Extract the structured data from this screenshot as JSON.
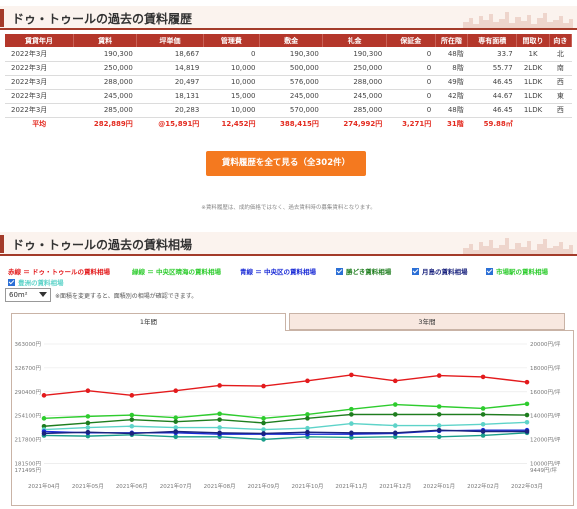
{
  "section1": {
    "title": "ドゥ・トゥールの過去の賃料履歴"
  },
  "history_table": {
    "headers": [
      "賃貸年月",
      "賃料",
      "坪単価",
      "管理費",
      "敷金",
      "礼金",
      "保証金",
      "所在階",
      "専有面積",
      "間取り",
      "向き"
    ],
    "rows": [
      [
        "2022年3月",
        "190,300",
        "18,667",
        "0",
        "190,300",
        "190,300",
        "0",
        "48階",
        "33.7",
        "1K",
        "北"
      ],
      [
        "2022年3月",
        "250,000",
        "14,819",
        "10,000",
        "500,000",
        "250,000",
        "0",
        "8階",
        "55.77",
        "2LDK",
        "南"
      ],
      [
        "2022年3月",
        "288,000",
        "20,497",
        "10,000",
        "576,000",
        "288,000",
        "0",
        "49階",
        "46.45",
        "1LDK",
        "西"
      ],
      [
        "2022年3月",
        "245,000",
        "18,131",
        "15,000",
        "245,000",
        "245,000",
        "0",
        "42階",
        "44.67",
        "1LDK",
        "東"
      ],
      [
        "2022年3月",
        "285,000",
        "20,283",
        "10,000",
        "570,000",
        "285,000",
        "0",
        "48階",
        "46.45",
        "1LDK",
        "西"
      ]
    ],
    "average": [
      "平均",
      "282,889円",
      "@15,891円",
      "12,452円",
      "388,415円",
      "274,992円",
      "3,271円",
      "31階",
      "59.88㎡",
      "",
      ""
    ]
  },
  "more_button": {
    "label": "賃料履歴を全て見る（全302件）"
  },
  "note": "※賃料履歴は、成約価格ではなく、過去賃料時の募集賃料となります。",
  "section2": {
    "title": "ドゥ・トゥールの過去の賃料相場"
  },
  "legend": {
    "red": "赤線 ＝ ドゥ・トゥールの賃料相場",
    "green": "緑線 ＝ 中央区晴海の賃料相場",
    "blue": "青線 ＝ 中央区の賃料相場",
    "checks": [
      "勝どき賃料相場",
      "月島の賃料相場",
      "市場駅の賃料相場",
      "豊洲の賃料相場"
    ]
  },
  "area_select": {
    "value": "60m²"
  },
  "area_note": "※面積を変更すると、面積別の相場が確認できます。",
  "tabs": [
    "1年間",
    "3年間"
  ],
  "colors": {
    "red": "#e31a1c",
    "green": "#2ecc2e",
    "blue": "#1a2bd6",
    "dark_green": "#1e7d1e",
    "teal": "#1b9e8a",
    "light_teal": "#5ed3c9",
    "navy": "#1a237e"
  },
  "chart_data": {
    "type": "line",
    "x": [
      "2021年04月",
      "2021年05月",
      "2021年06月",
      "2021年07月",
      "2021年08月",
      "2021年09月",
      "2021年10月",
      "2021年11月",
      "2021年12月",
      "2022年01月",
      "2022年02月",
      "2022年03月"
    ],
    "left_ticks": [
      "363000円",
      "326700円",
      "290400円",
      "254100円",
      "217800円",
      "181500円",
      "171495円"
    ],
    "right_ticks": [
      "20000円/坪",
      "18000円/坪",
      "16000円/坪",
      "14000円/坪",
      "12000円/坪",
      "10000円/坪",
      "9449円/坪"
    ],
    "ylim": [
      171495,
      363000
    ],
    "series": [
      {
        "color": "#e31a1c",
        "values": [
          285000,
          292000,
          285000,
          292000,
          300000,
          299000,
          307000,
          316000,
          307000,
          315000,
          313000,
          305000
        ]
      },
      {
        "color": "#2ecc2e",
        "values": [
          250000,
          253000,
          255000,
          251000,
          257000,
          250000,
          256000,
          264000,
          271000,
          268000,
          265000,
          272000
        ]
      },
      {
        "color": "#1e7d1e",
        "values": [
          238000,
          243000,
          248000,
          245000,
          248000,
          243000,
          250000,
          256000,
          256000,
          256000,
          256000,
          255000
        ]
      },
      {
        "color": "#5ed3c9",
        "values": [
          233000,
          236000,
          238000,
          236000,
          236000,
          233000,
          235000,
          242000,
          239000,
          239000,
          241000,
          244000
        ]
      },
      {
        "color": "#1b9e8a",
        "values": [
          224000,
          223000,
          225000,
          222000,
          222000,
          218000,
          222000,
          221000,
          222000,
          222000,
          224000,
          228000
        ]
      },
      {
        "color": "#1a2bd6",
        "values": [
          230000,
          228000,
          228000,
          228000,
          226000,
          226000,
          226000,
          226000,
          227000,
          231000,
          232000,
          232000
        ]
      },
      {
        "color": "#1a237e",
        "values": [
          227000,
          229000,
          227000,
          230000,
          228000,
          227000,
          229000,
          228000,
          228000,
          232000,
          230000,
          230000
        ]
      }
    ]
  }
}
